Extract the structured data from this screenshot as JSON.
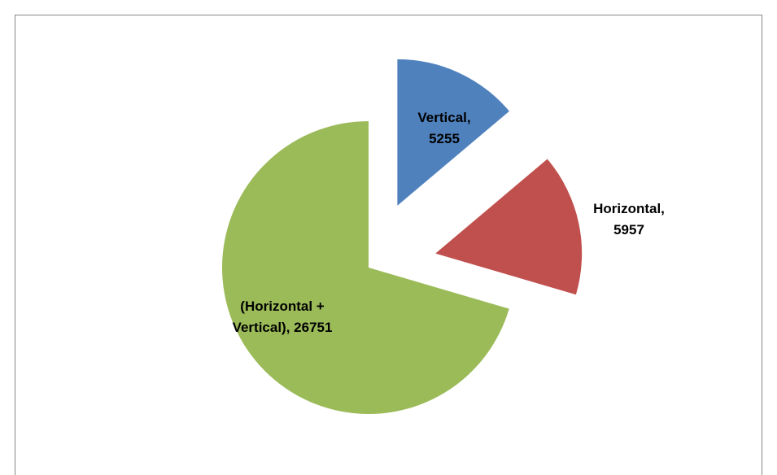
{
  "chart_data": {
    "type": "pie",
    "values": [
      5255,
      5957,
      26751
    ],
    "value_labels": [
      "Vertical, 5255",
      "Horizontal, 5957",
      "(Horizontal + Vertical), 26751"
    ],
    "colors": [
      "#4f81bd",
      "#c0504d",
      "#9bbb59"
    ],
    "exploded": [
      true,
      true,
      false
    ]
  }
}
